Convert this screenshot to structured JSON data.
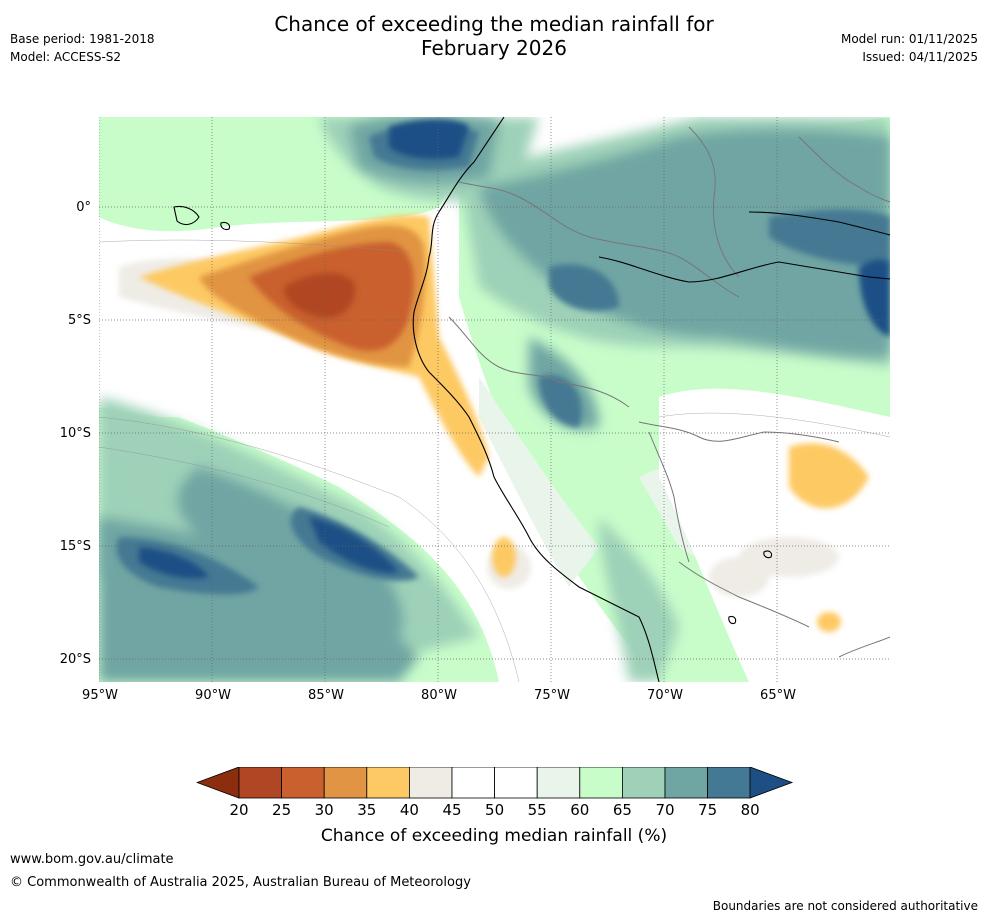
{
  "header": {
    "title_line1": "Chance of exceeding the median rainfall for",
    "title_line2": "February 2026",
    "base_period": "Base period: 1981-2018",
    "model": "Model: ACCESS-S2",
    "model_run": "Model run: 01/11/2025",
    "issued": "Issued: 04/11/2025"
  },
  "map": {
    "lat_labels": [
      "0°",
      "5°S",
      "10°S",
      "15°S",
      "20°S"
    ],
    "lon_labels": [
      "95°W",
      "90°W",
      "85°W",
      "80°W",
      "75°W",
      "70°W",
      "65°W"
    ]
  },
  "colorbar": {
    "ticks": [
      "20",
      "25",
      "30",
      "35",
      "40",
      "45",
      "50",
      "55",
      "60",
      "65",
      "70",
      "75",
      "80"
    ],
    "colors": [
      "#8c2d0f",
      "#b04623",
      "#c9602e",
      "#e19443",
      "#fdc964",
      "#efece6",
      "#ffffff",
      "#ffffff",
      "#e9f5ea",
      "#c8fdca",
      "#9ed1b8",
      "#6fa5a3",
      "#447993",
      "#1d4f85"
    ],
    "title": "Chance of exceeding median rainfall (%)"
  },
  "footer": {
    "website": "www.bom.gov.au/climate",
    "copyright": "© Commonwealth of Australia 2025, Australian Bureau of Meteorology",
    "disclaimer": "Boundaries are not considered authoritative"
  }
}
